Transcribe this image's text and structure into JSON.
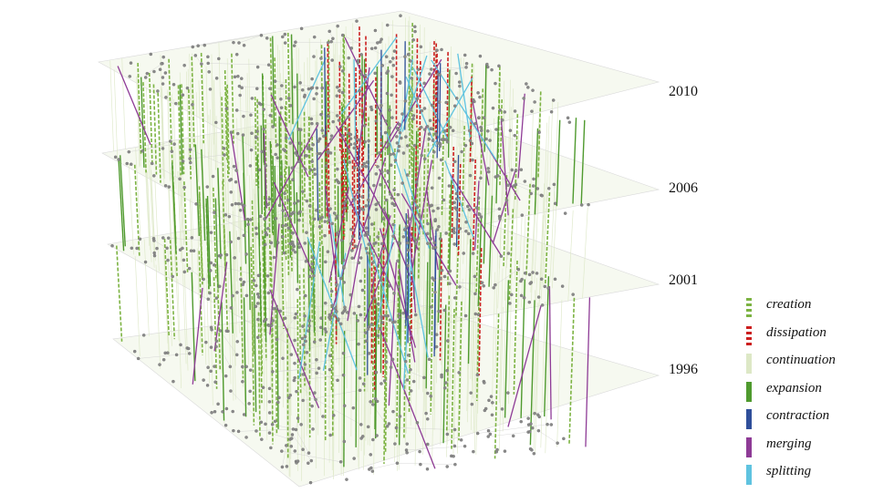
{
  "layers": [
    {
      "year": "2010"
    },
    {
      "year": "2006"
    },
    {
      "year": "2001"
    },
    {
      "year": "1996"
    }
  ],
  "legend": [
    {
      "label": "creation",
      "color": "#7cb342",
      "style": "dashed"
    },
    {
      "label": "dissipation",
      "color": "#cc1f1f",
      "style": "dashed"
    },
    {
      "label": "continuation",
      "color": "#dde8c6",
      "style": "solid"
    },
    {
      "label": "expansion",
      "color": "#4f9a2e",
      "style": "solid"
    },
    {
      "label": "contraction",
      "color": "#2f4f9a",
      "style": "solid"
    },
    {
      "label": "merging",
      "color": "#8e3b96",
      "style": "solid"
    },
    {
      "label": "splitting",
      "color": "#5fc3e0",
      "style": "solid"
    }
  ],
  "colors": {
    "node": "#8a8a8a",
    "edge": "#cfcfcf",
    "plane": "#e6efd4"
  }
}
